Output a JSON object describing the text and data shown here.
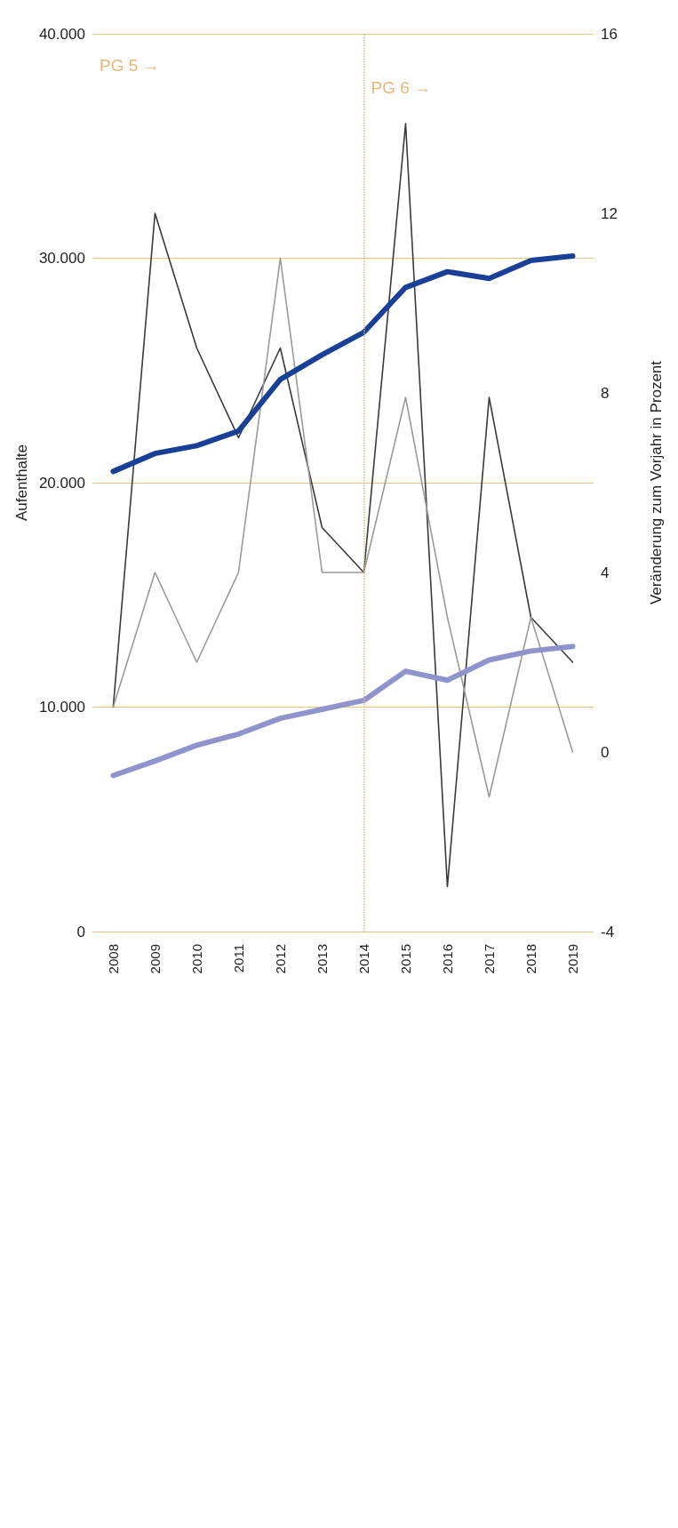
{
  "chart_data": {
    "type": "line",
    "xlabel": null,
    "ylabel": "Aufenthalte",
    "y2label": "Veränderung zum Vorjahr in Prozent",
    "categories": [
      "2008",
      "2009",
      "2010",
      "2011",
      "2012",
      "2013",
      "2014",
      "2015",
      "2016",
      "2017",
      "2018",
      "2019"
    ],
    "series": [
      {
        "color": "#1a3f96",
        "values": [
          20500,
          21300,
          21650,
          22300,
          24600,
          25700,
          26700,
          28700,
          29400,
          29100,
          29900,
          30100
        ]
      },
      {
        "color": "#8f95cc",
        "values": [
          6950,
          7600,
          8300,
          8800,
          9500,
          9900,
          10300,
          11600,
          11200,
          12100,
          12500,
          12700
        ]
      },
      {
        "color": "#3a3a3a",
        "axis": "y2",
        "values": [
          1,
          12,
          9,
          7,
          9,
          5,
          4,
          14,
          -3,
          7.9,
          3,
          2
        ]
      },
      {
        "color": "#9a9a9a",
        "axis": "y2",
        "values": [
          1,
          4,
          2,
          4,
          11,
          4,
          4,
          7.9,
          3,
          -1,
          3,
          0
        ]
      }
    ],
    "ylim": [
      0,
      40000
    ],
    "yticks": [
      0,
      {
        "value": 10000,
        "label": "10.000"
      },
      {
        "value": 20000,
        "label": "20.000"
      },
      {
        "value": 30000,
        "label": "30.000"
      },
      {
        "value": 40000,
        "label": "40.000"
      }
    ],
    "y2lim": [
      -4,
      16
    ],
    "y2ticks": [
      -4,
      0,
      4,
      8,
      12,
      16
    ],
    "grid": "y",
    "marker": "none",
    "line_style": "solid",
    "ref_lines": [
      {
        "axis": "x",
        "value": "2014",
        "label": "PG 6 →",
        "color": "#e8b878",
        "line_style": "dotted"
      }
    ],
    "annotations": [
      "PG 5 →"
    ]
  }
}
